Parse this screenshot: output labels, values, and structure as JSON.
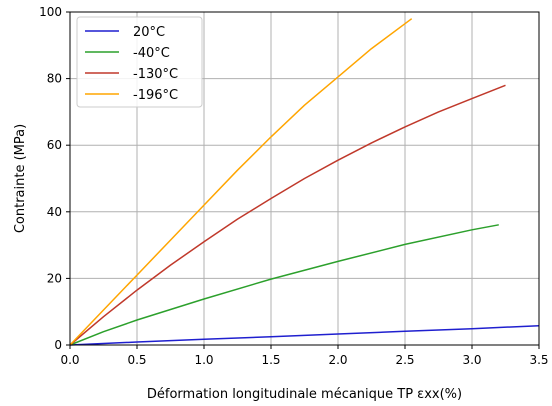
{
  "chart_data": {
    "type": "line",
    "title": "",
    "xlabel": "Déformation longitudinale mécanique TP εxx(%)",
    "ylabel": "Contrainte (MPa)",
    "xlim": [
      0.0,
      3.5
    ],
    "ylim": [
      0,
      100
    ],
    "x_ticks": [
      "0.0",
      "0.5",
      "1.0",
      "1.5",
      "2.0",
      "2.5",
      "3.0",
      "3.5"
    ],
    "y_ticks": [
      "0",
      "20",
      "40",
      "60",
      "80",
      "100"
    ],
    "grid": true,
    "legend_position": "top-left",
    "series": [
      {
        "name": "20°C",
        "color": "#1f1fcf",
        "x": [
          0.0,
          0.5,
          1.0,
          1.5,
          2.0,
          2.5,
          3.0,
          3.5
        ],
        "y": [
          0.0,
          0.9,
          1.7,
          2.5,
          3.3,
          4.1,
          4.9,
          5.8
        ]
      },
      {
        "name": "-40°C",
        "color": "#2ca02c",
        "x": [
          0.0,
          0.25,
          0.5,
          1.0,
          1.5,
          2.0,
          2.5,
          3.0,
          3.2
        ],
        "y": [
          0.0,
          4.0,
          7.5,
          13.8,
          19.8,
          25.1,
          30.2,
          34.6,
          36.1
        ]
      },
      {
        "name": "-130°C",
        "color": "#c0392b",
        "x": [
          0.0,
          0.25,
          0.5,
          0.75,
          1.0,
          1.25,
          1.5,
          1.75,
          2.0,
          2.25,
          2.5,
          2.75,
          3.0,
          3.25
        ],
        "y": [
          0.0,
          8.5,
          16.5,
          24.0,
          31.0,
          37.8,
          44.0,
          50.0,
          55.5,
          60.7,
          65.5,
          70.0,
          74.0,
          78.0
        ]
      },
      {
        "name": "-196°C",
        "color": "#ffa500",
        "x": [
          0.0,
          0.25,
          0.5,
          0.75,
          1.0,
          1.25,
          1.5,
          1.75,
          2.0,
          2.25,
          2.55
        ],
        "y": [
          0.0,
          10.5,
          21.0,
          31.5,
          42.0,
          52.5,
          62.5,
          72.0,
          80.5,
          89.0,
          98.0
        ]
      }
    ]
  }
}
